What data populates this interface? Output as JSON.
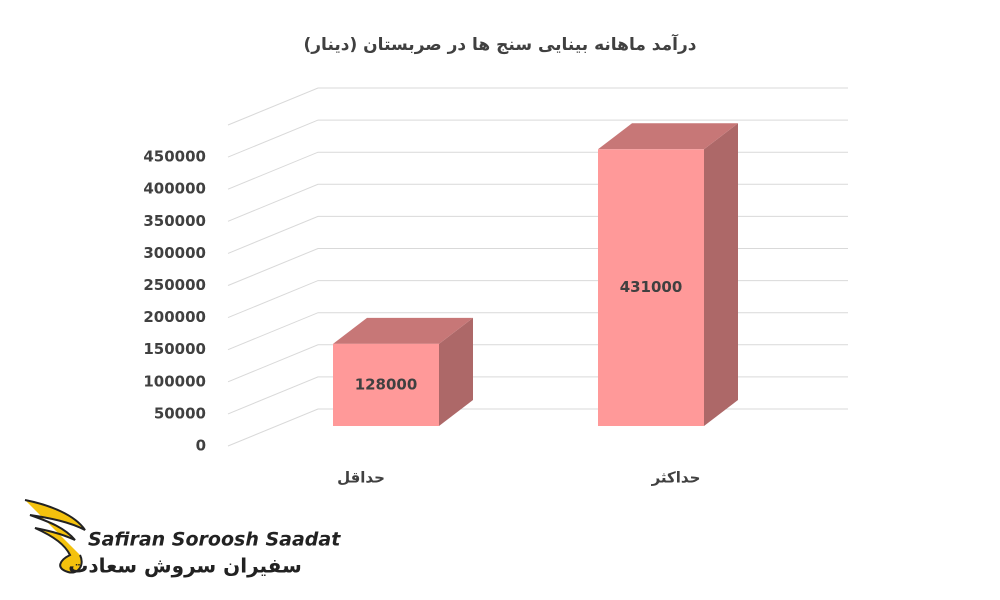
{
  "chart_data": {
    "type": "bar3d",
    "title": "درآمد ماهانه بینایی سنج ها در صربستان (دینار)",
    "categories": [
      "حداقل",
      "حداکثر"
    ],
    "values": [
      128000,
      431000
    ],
    "color": "#ff9999",
    "ylim": [
      0,
      500000
    ],
    "yticks": [
      0,
      50000,
      100000,
      150000,
      200000,
      250000,
      300000,
      350000,
      400000,
      450000
    ],
    "grid": true
  },
  "logo": {
    "latin": "Safiran Soroosh Saadat",
    "persian": "سفیران سروش سعادت"
  }
}
